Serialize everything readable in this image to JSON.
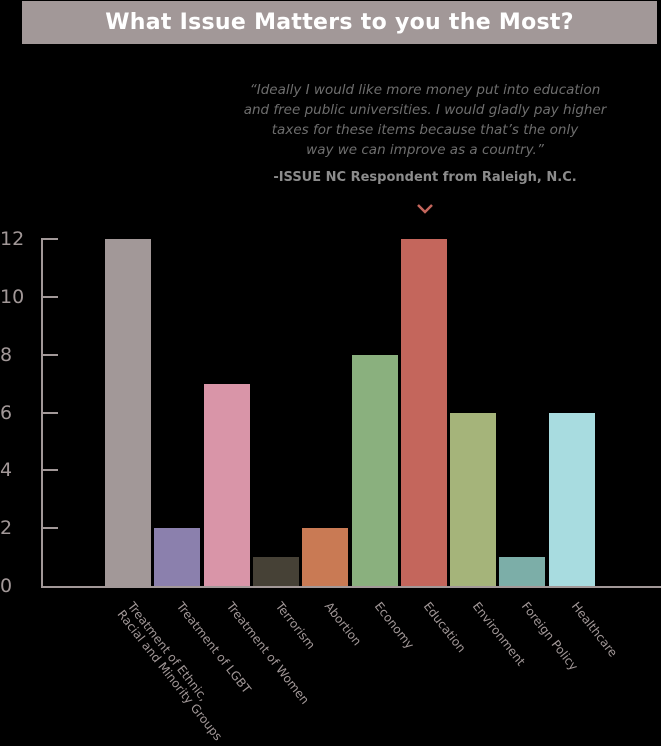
{
  "title": "What Issue Matters to you the Most?",
  "quote": {
    "lines": [
      "“Ideally I would like more money put into education",
      "and free public universities. I would gladly pay higher",
      "taxes for these items because that’s the only",
      "way we can improve as a country.”"
    ],
    "attribution": "-ISSUE NC Respondent from Raleigh, N.C.",
    "pointer_icon": "chevron-down-icon",
    "pointer_color": "#c4665c"
  },
  "chart_data": {
    "type": "bar",
    "title": "What Issue Matters to you the Most?",
    "xlabel": "",
    "ylabel": "",
    "ylim": [
      0,
      12
    ],
    "yticks": [
      "0",
      "2",
      "4",
      "6",
      "8",
      "10",
      "12"
    ],
    "grid": false,
    "legend": null,
    "categories": [
      "Treatment of Ethnic,\nRacial and Minority Groups",
      "Treatment of LGBT",
      "Treatment of Women",
      "Terrorism",
      "Abortion",
      "Economy",
      "Education",
      "Environment",
      "Foreign Policy",
      "Healthcare"
    ],
    "values": [
      12,
      2,
      7,
      1,
      2,
      8,
      12,
      6,
      1,
      6
    ],
    "colors": [
      "#a29898",
      "#8b80ad",
      "#d995a8",
      "#464136",
      "#c97a54",
      "#8ab07e",
      "#c4665c",
      "#a5b47a",
      "#7caea8",
      "#a8dce0"
    ],
    "annotation": "Quote points to Education bar"
  }
}
